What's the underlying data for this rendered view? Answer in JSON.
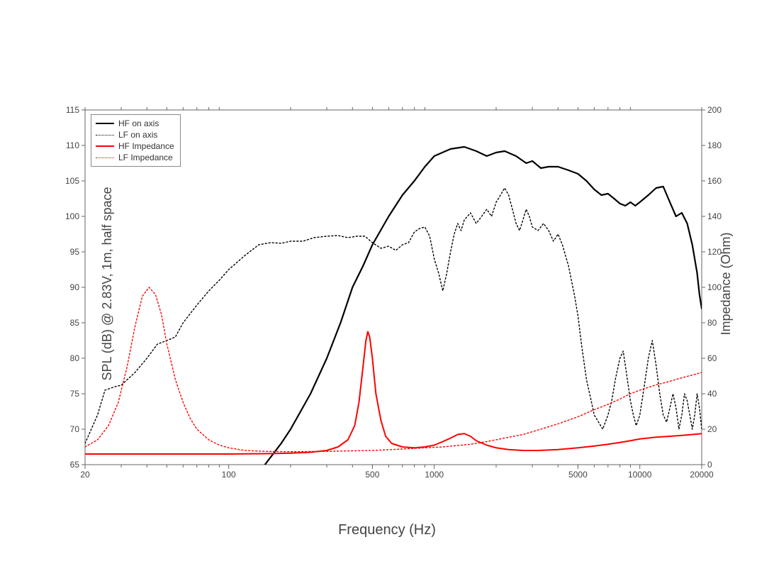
{
  "chart": {
    "type": "line",
    "background_color": "#ffffff",
    "plot_border_color": "#666666",
    "axis_tick_color": "#666666",
    "axis_text_color": "#444444",
    "font_family": "Arial",
    "label_fontsize": 18,
    "tick_fontsize": 12,
    "legend_fontsize": 12,
    "x_axis": {
      "label": "Frequency (Hz)",
      "scale": "log",
      "min": 20,
      "max": 20000,
      "ticks": [
        20,
        100,
        500,
        1000,
        5000,
        10000,
        20000
      ],
      "tick_labels": [
        "20",
        "100",
        "500",
        "1000",
        "5000",
        "10000",
        "20000"
      ]
    },
    "y_axis_left": {
      "label": "SPL (dB) @ 2.83V, 1m, half space",
      "min": 65,
      "max": 115,
      "step": 5
    },
    "y_axis_right": {
      "label": "Impedance (Ohm)",
      "min": 0,
      "max": 200,
      "step": 20
    },
    "legend": {
      "position": "upper-left",
      "border_color": "#888888",
      "items": [
        {
          "label": "HF on axis",
          "color": "#000000",
          "dash": "solid",
          "width": 2
        },
        {
          "label": "LF on axis",
          "color": "#000000",
          "dash": "dotted",
          "width": 1.5
        },
        {
          "label": "HF Impedance",
          "color": "#ff0000",
          "dash": "solid",
          "width": 2
        },
        {
          "label": "LF Impedance",
          "color": "#ff0000",
          "dash": "dotted",
          "width": 1.5
        }
      ]
    },
    "series": [
      {
        "name": "HF on axis",
        "axis": "left",
        "color": "#000000",
        "dash": "solid",
        "width": 2.2,
        "points": [
          [
            150,
            65
          ],
          [
            180,
            68
          ],
          [
            200,
            70
          ],
          [
            250,
            75
          ],
          [
            300,
            80
          ],
          [
            350,
            85
          ],
          [
            400,
            90
          ],
          [
            450,
            93
          ],
          [
            500,
            96
          ],
          [
            600,
            100
          ],
          [
            700,
            103
          ],
          [
            800,
            105
          ],
          [
            900,
            107
          ],
          [
            1000,
            108.5
          ],
          [
            1200,
            109.5
          ],
          [
            1400,
            109.8
          ],
          [
            1600,
            109.2
          ],
          [
            1800,
            108.5
          ],
          [
            2000,
            109
          ],
          [
            2200,
            109.2
          ],
          [
            2500,
            108.5
          ],
          [
            2800,
            107.5
          ],
          [
            3000,
            107.8
          ],
          [
            3300,
            106.8
          ],
          [
            3600,
            107
          ],
          [
            4000,
            107
          ],
          [
            4500,
            106.5
          ],
          [
            5000,
            106
          ],
          [
            5500,
            105
          ],
          [
            6000,
            103.8
          ],
          [
            6500,
            103
          ],
          [
            7000,
            103.2
          ],
          [
            7500,
            102.5
          ],
          [
            8000,
            101.8
          ],
          [
            8500,
            101.5
          ],
          [
            9000,
            102
          ],
          [
            9500,
            101.5
          ],
          [
            10000,
            102
          ],
          [
            11000,
            103
          ],
          [
            12000,
            104
          ],
          [
            13000,
            104.2
          ],
          [
            14000,
            102
          ],
          [
            15000,
            100
          ],
          [
            16000,
            100.5
          ],
          [
            17000,
            99
          ],
          [
            18000,
            96
          ],
          [
            19000,
            92
          ],
          [
            19500,
            89
          ],
          [
            20000,
            87
          ]
        ]
      },
      {
        "name": "LF on axis",
        "axis": "left",
        "color": "#000000",
        "dash": "dotted",
        "width": 1.4,
        "points": [
          [
            20,
            68
          ],
          [
            23,
            72
          ],
          [
            25,
            75.5
          ],
          [
            28,
            76
          ],
          [
            30,
            76.2
          ],
          [
            35,
            78
          ],
          [
            40,
            80
          ],
          [
            45,
            82
          ],
          [
            50,
            82.5
          ],
          [
            55,
            83
          ],
          [
            60,
            85
          ],
          [
            70,
            87.5
          ],
          [
            80,
            89.5
          ],
          [
            90,
            91
          ],
          [
            100,
            92.5
          ],
          [
            120,
            94.5
          ],
          [
            140,
            96
          ],
          [
            160,
            96.3
          ],
          [
            180,
            96.2
          ],
          [
            200,
            96.5
          ],
          [
            230,
            96.5
          ],
          [
            260,
            97
          ],
          [
            300,
            97.2
          ],
          [
            340,
            97.3
          ],
          [
            380,
            97
          ],
          [
            420,
            97.2
          ],
          [
            460,
            97.2
          ],
          [
            500,
            96.3
          ],
          [
            550,
            95.5
          ],
          [
            600,
            95.8
          ],
          [
            650,
            95.2
          ],
          [
            700,
            96
          ],
          [
            750,
            96.3
          ],
          [
            800,
            97.8
          ],
          [
            850,
            98.3
          ],
          [
            900,
            98.5
          ],
          [
            950,
            97.2
          ],
          [
            1000,
            94
          ],
          [
            1050,
            92
          ],
          [
            1100,
            89.5
          ],
          [
            1150,
            92
          ],
          [
            1200,
            95
          ],
          [
            1250,
            97.5
          ],
          [
            1300,
            99
          ],
          [
            1350,
            98
          ],
          [
            1400,
            99.5
          ],
          [
            1500,
            100.5
          ],
          [
            1600,
            99
          ],
          [
            1700,
            100
          ],
          [
            1800,
            101
          ],
          [
            1900,
            100
          ],
          [
            2000,
            102
          ],
          [
            2100,
            103
          ],
          [
            2200,
            104
          ],
          [
            2300,
            103
          ],
          [
            2400,
            101
          ],
          [
            2500,
            99
          ],
          [
            2600,
            98
          ],
          [
            2700,
            99.5
          ],
          [
            2800,
            101
          ],
          [
            2900,
            100
          ],
          [
            3000,
            98.5
          ],
          [
            3200,
            98
          ],
          [
            3400,
            99
          ],
          [
            3600,
            98
          ],
          [
            3800,
            96.5
          ],
          [
            4000,
            97.5
          ],
          [
            4200,
            96
          ],
          [
            4500,
            93
          ],
          [
            4800,
            89
          ],
          [
            5000,
            86
          ],
          [
            5200,
            82
          ],
          [
            5500,
            77
          ],
          [
            5800,
            74
          ],
          [
            6000,
            72
          ],
          [
            6300,
            71
          ],
          [
            6600,
            70
          ],
          [
            7000,
            72
          ],
          [
            7300,
            74
          ],
          [
            7600,
            77
          ],
          [
            8000,
            80
          ],
          [
            8300,
            81
          ],
          [
            8600,
            78
          ],
          [
            9000,
            74
          ],
          [
            9300,
            72
          ],
          [
            9600,
            70.5
          ],
          [
            10000,
            72
          ],
          [
            10500,
            76
          ],
          [
            11000,
            80
          ],
          [
            11500,
            82.5
          ],
          [
            12000,
            79
          ],
          [
            12500,
            75
          ],
          [
            13000,
            72
          ],
          [
            13500,
            71
          ],
          [
            14000,
            73
          ],
          [
            14500,
            75
          ],
          [
            15000,
            73
          ],
          [
            15500,
            70
          ],
          [
            16000,
            72
          ],
          [
            16500,
            75
          ],
          [
            17000,
            74
          ],
          [
            17500,
            72
          ],
          [
            18000,
            70
          ],
          [
            18500,
            72
          ],
          [
            19000,
            75
          ],
          [
            19500,
            73
          ],
          [
            20000,
            70
          ]
        ]
      },
      {
        "name": "HF Impedance",
        "axis": "right",
        "color": "#ff0000",
        "dash": "solid",
        "width": 2,
        "points": [
          [
            20,
            6
          ],
          [
            50,
            6
          ],
          [
            100,
            6
          ],
          [
            150,
            6.2
          ],
          [
            200,
            6.5
          ],
          [
            250,
            7
          ],
          [
            300,
            8
          ],
          [
            340,
            10
          ],
          [
            380,
            14
          ],
          [
            410,
            22
          ],
          [
            430,
            35
          ],
          [
            450,
            55
          ],
          [
            465,
            70
          ],
          [
            475,
            75
          ],
          [
            485,
            72
          ],
          [
            500,
            60
          ],
          [
            520,
            40
          ],
          [
            550,
            25
          ],
          [
            580,
            16
          ],
          [
            620,
            12
          ],
          [
            700,
            10
          ],
          [
            800,
            9.5
          ],
          [
            900,
            10
          ],
          [
            1000,
            11
          ],
          [
            1100,
            13
          ],
          [
            1200,
            15
          ],
          [
            1300,
            17
          ],
          [
            1400,
            17.5
          ],
          [
            1500,
            16
          ],
          [
            1600,
            13.5
          ],
          [
            1800,
            11
          ],
          [
            2000,
            9.5
          ],
          [
            2300,
            8.5
          ],
          [
            2700,
            8
          ],
          [
            3200,
            8
          ],
          [
            4000,
            8.5
          ],
          [
            5000,
            9.5
          ],
          [
            6000,
            10.5
          ],
          [
            7000,
            11.5
          ],
          [
            8000,
            12.5
          ],
          [
            9000,
            13.5
          ],
          [
            10000,
            14.5
          ],
          [
            12000,
            15.5
          ],
          [
            14000,
            16
          ],
          [
            16000,
            16.5
          ],
          [
            18000,
            17
          ],
          [
            20000,
            17.5
          ]
        ]
      },
      {
        "name": "LF Impedance",
        "axis": "right",
        "color": "#ff0000",
        "dash": "dotted",
        "width": 1.4,
        "points": [
          [
            20,
            10
          ],
          [
            23,
            14
          ],
          [
            26,
            22
          ],
          [
            29,
            35
          ],
          [
            32,
            55
          ],
          [
            35,
            78
          ],
          [
            38,
            95
          ],
          [
            41,
            100
          ],
          [
            44,
            96
          ],
          [
            47,
            85
          ],
          [
            50,
            68
          ],
          [
            55,
            48
          ],
          [
            60,
            35
          ],
          [
            65,
            26
          ],
          [
            70,
            20
          ],
          [
            80,
            14
          ],
          [
            90,
            11
          ],
          [
            100,
            9.5
          ],
          [
            120,
            8
          ],
          [
            150,
            7.5
          ],
          [
            200,
            7.3
          ],
          [
            300,
            7.5
          ],
          [
            400,
            7.8
          ],
          [
            500,
            8
          ],
          [
            700,
            8.8
          ],
          [
            900,
            9.5
          ],
          [
            1100,
            10
          ],
          [
            1300,
            10.8
          ],
          [
            1500,
            11.5
          ],
          [
            1800,
            13
          ],
          [
            2200,
            15
          ],
          [
            2700,
            17
          ],
          [
            3300,
            20
          ],
          [
            4000,
            23
          ],
          [
            5000,
            27
          ],
          [
            6000,
            31
          ],
          [
            7000,
            34
          ],
          [
            8000,
            37
          ],
          [
            9000,
            40
          ],
          [
            10000,
            42
          ],
          [
            12000,
            45
          ],
          [
            14000,
            47
          ],
          [
            16000,
            49
          ],
          [
            18000,
            50.5
          ],
          [
            20000,
            52
          ]
        ]
      }
    ]
  }
}
